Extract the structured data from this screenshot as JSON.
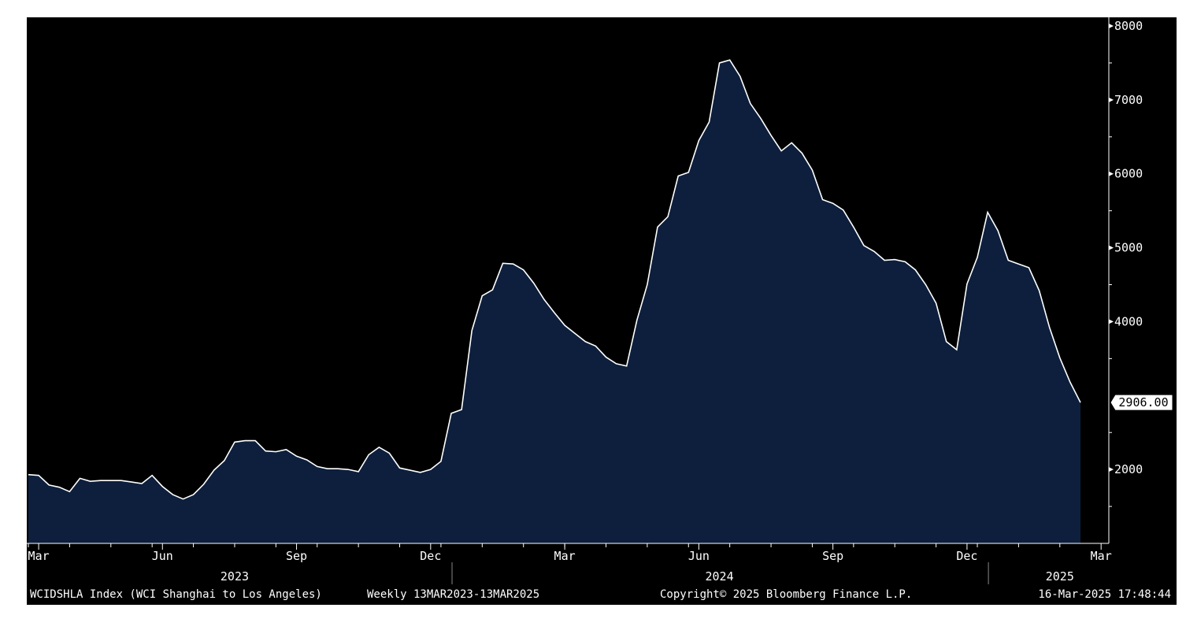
{
  "footer": {
    "index_desc": "WCIDSHLA Index (WCI Shanghai to Los Angeles)",
    "period": "Weekly 13MAR2023-13MAR2025",
    "copyright": "Copyright© 2025 Bloomberg Finance L.P.",
    "timestamp": "16-Mar-2025 17:48:44"
  },
  "colors": {
    "background": "#000000",
    "fill": "#0d1f3c",
    "line": "#ffffff",
    "text": "#ffffff",
    "frame": "#ffffff"
  },
  "chart_data": {
    "type": "area",
    "xlabel": "",
    "ylabel": "",
    "ylim": [
      1000,
      8000
    ],
    "y_ticks": [
      {
        "value": 8000,
        "label": "8000"
      },
      {
        "value": 7000,
        "label": "7000"
      },
      {
        "value": 6000,
        "label": "6000"
      },
      {
        "value": 5000,
        "label": "5000"
      },
      {
        "value": 4000,
        "label": "4000"
      },
      {
        "value": 2000,
        "label": "2000"
      }
    ],
    "last_value_label": "2906.00",
    "x_month_labels": [
      {
        "week": 1,
        "label": "Mar"
      },
      {
        "week": 13,
        "label": "Jun"
      },
      {
        "week": 26,
        "label": "Sep"
      },
      {
        "week": 39,
        "label": "Dec"
      },
      {
        "week": 52,
        "label": "Mar"
      },
      {
        "week": 65,
        "label": "Jun"
      },
      {
        "week": 78,
        "label": "Sep"
      },
      {
        "week": 91,
        "label": "Dec"
      },
      {
        "week": 104,
        "label": "Mar"
      }
    ],
    "x_year_labels": [
      {
        "week": 20,
        "label": "2023"
      },
      {
        "week": 67,
        "label": "2024"
      },
      {
        "week": 100,
        "label": "2025"
      }
    ],
    "series": [
      {
        "values": [
          1930,
          1920,
          1790,
          1760,
          1700,
          1880,
          1840,
          1850,
          1850,
          1850,
          1830,
          1810,
          1920,
          1770,
          1660,
          1600,
          1660,
          1800,
          1990,
          2120,
          2370,
          2390,
          2390,
          2250,
          2240,
          2270,
          2180,
          2130,
          2040,
          2010,
          2010,
          2000,
          1970,
          2200,
          2300,
          2220,
          2020,
          1990,
          1960,
          2000,
          2110,
          2760,
          2810,
          3880,
          4350,
          4430,
          4790,
          4780,
          4700,
          4520,
          4300,
          4120,
          3950,
          3840,
          3730,
          3670,
          3520,
          3430,
          3400,
          4020,
          4500,
          5280,
          5420,
          5970,
          6020,
          6450,
          6700,
          7500,
          7540,
          7320,
          6950,
          6750,
          6520,
          6310,
          6420,
          6280,
          6050,
          5650,
          5600,
          5510,
          5280,
          5030,
          4950,
          4830,
          4840,
          4810,
          4700,
          4500,
          4250,
          3730,
          3620,
          4510,
          4870,
          5480,
          5230,
          4830,
          4780,
          4730,
          4420,
          3920,
          3510,
          3180,
          2906
        ]
      }
    ]
  }
}
